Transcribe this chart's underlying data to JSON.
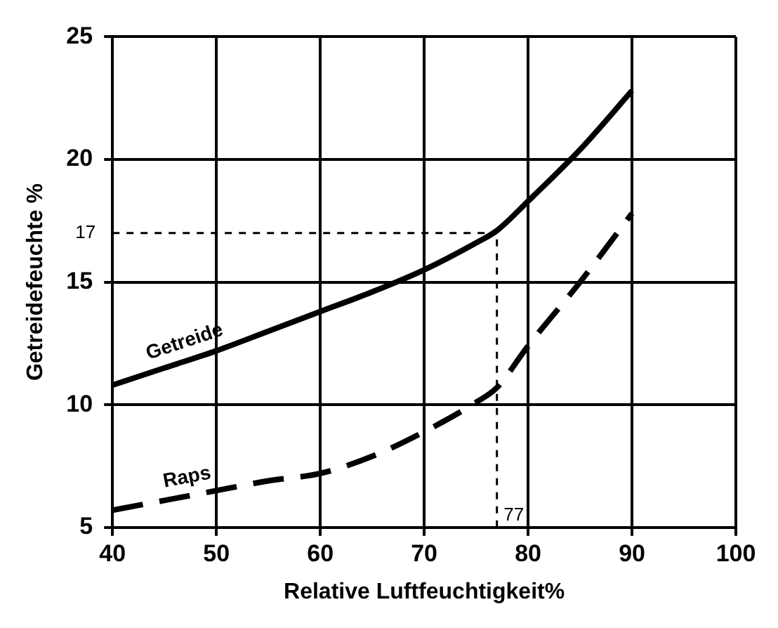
{
  "chart_data": {
    "type": "line",
    "xlabel": "Relative Luftfeuchtigkeit%",
    "ylabel": "Getreidefeuchte %",
    "xlim": [
      40,
      100
    ],
    "xticks": [
      40,
      50,
      60,
      70,
      80,
      90,
      100
    ],
    "ylim": [
      5,
      25
    ],
    "yticks": [
      5,
      10,
      15,
      20,
      25
    ],
    "grid": true,
    "legend": false,
    "marker": "none",
    "series": [
      {
        "name": "Getreide",
        "color": "#000000",
        "line_style": "solid",
        "x": [
          40,
          45,
          50,
          55,
          60,
          65,
          70,
          75,
          77,
          80,
          85,
          90
        ],
        "values": [
          10.8,
          11.5,
          12.2,
          13,
          13.8,
          14.6,
          15.5,
          16.6,
          17.1,
          18.3,
          20.4,
          22.8
        ]
      },
      {
        "name": "Raps",
        "color": "#000000",
        "line_style": "dashed",
        "x": [
          40,
          45,
          50,
          55,
          60,
          65,
          70,
          75,
          77,
          80,
          85,
          90
        ],
        "values": [
          5.7,
          6.1,
          6.5,
          6.9,
          7.2,
          7.9,
          8.9,
          10.1,
          10.7,
          12.4,
          15,
          17.8
        ]
      }
    ],
    "ref_lines": [
      {
        "axis": "y",
        "value": 17,
        "label": "17",
        "line_style": "dotted"
      },
      {
        "axis": "x",
        "value": 77,
        "label": "77",
        "line_style": "dotted"
      }
    ]
  }
}
